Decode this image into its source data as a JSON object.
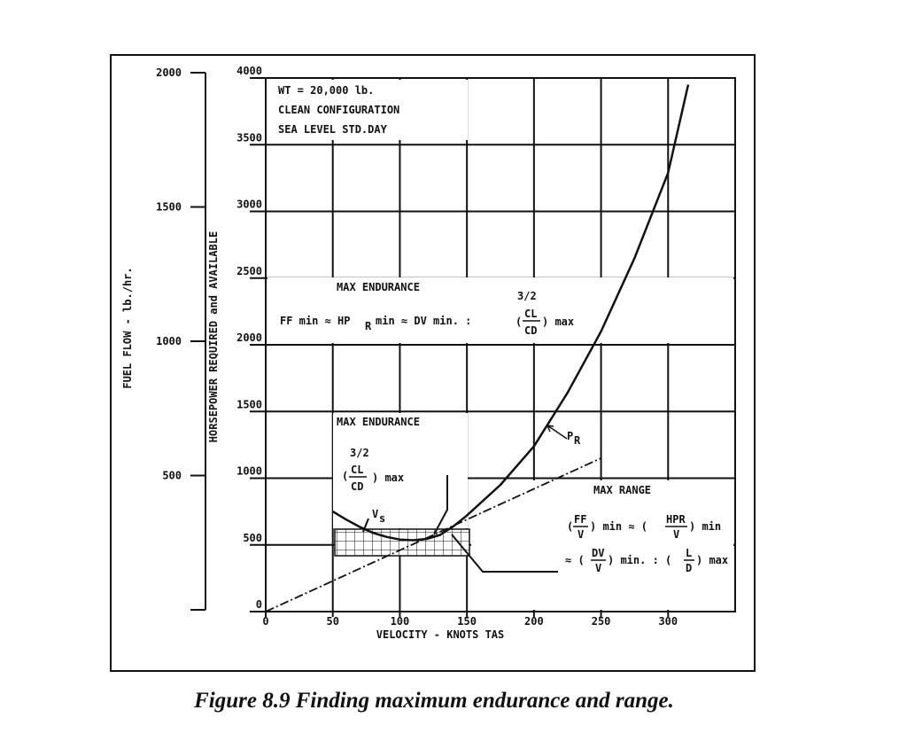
{
  "chart_data": {
    "type": "line",
    "x_label": "VELOCITY - KNOTS TAS",
    "y_label": "HORSEPOWER REQUIRED and AVAILABLE",
    "y2_label": "FUEL FLOW - lb./hr.",
    "xlim": [
      0,
      350
    ],
    "xticks": [
      0,
      50,
      100,
      150,
      200,
      250,
      300
    ],
    "ylim": [
      0,
      4000
    ],
    "yticks": [
      0,
      500,
      1000,
      1500,
      2000,
      2500,
      3000,
      3500,
      4000
    ],
    "y2lim": [
      0,
      2000
    ],
    "y2ticks": [
      500,
      1000,
      1500,
      2000
    ],
    "grid": true,
    "series": [
      {
        "color": "#111",
        "style": "solid",
        "x": [
          50,
          60,
          70,
          80,
          90,
          100,
          110,
          120,
          130,
          140,
          150,
          175,
          200,
          225,
          250,
          275,
          300,
          315
        ],
        "values": [
          750,
          690,
          635,
          590,
          560,
          540,
          535,
          545,
          575,
          640,
          720,
          950,
          1240,
          1640,
          2100,
          2650,
          3290,
          3950
        ]
      },
      {
        "color": "#111",
        "style": "dashdot",
        "axis": "y",
        "x": [
          0,
          250
        ],
        "values": [
          0,
          1150
        ]
      }
    ],
    "info": [
      "WT = 20,000 lb.",
      "CLEAN CONFIGURATION",
      "SEA LEVEL STD.DAY"
    ],
    "curve_label": {
      "main": "P",
      "sub": "R"
    },
    "vs_label": {
      "main": "V",
      "sub": "s"
    },
    "endurance_top": {
      "heading": "MAX ENDURANCE",
      "lhs": "FF min ≈ HP",
      "lhs_sub": "R",
      "mid": "min ≈ DV min. :",
      "exp": "3/2",
      "num": "CL",
      "den": "CD",
      "tail": ") max",
      "open": "("
    },
    "endurance_mid": {
      "heading": "MAX ENDURANCE",
      "exp": "3/2",
      "open": "(",
      "num": "CL",
      "den": "CD",
      "tail": ") max"
    },
    "range": {
      "heading": "MAX RANGE",
      "l1a": "(",
      "l1num": "FF",
      "l1den": "V",
      "l1b": ") min ≈ (",
      "l1num2": "HPR",
      "l1den2": "V",
      "l1c": ") min",
      "l2a": "≈ (",
      "l2num": "DV",
      "l2den": "V",
      "l2b": ") min. : (",
      "l2num2": "L",
      "l2den2": "D",
      "l2c": ") max"
    }
  },
  "caption": "Figure 8.9 Finding maximum endurance and range."
}
